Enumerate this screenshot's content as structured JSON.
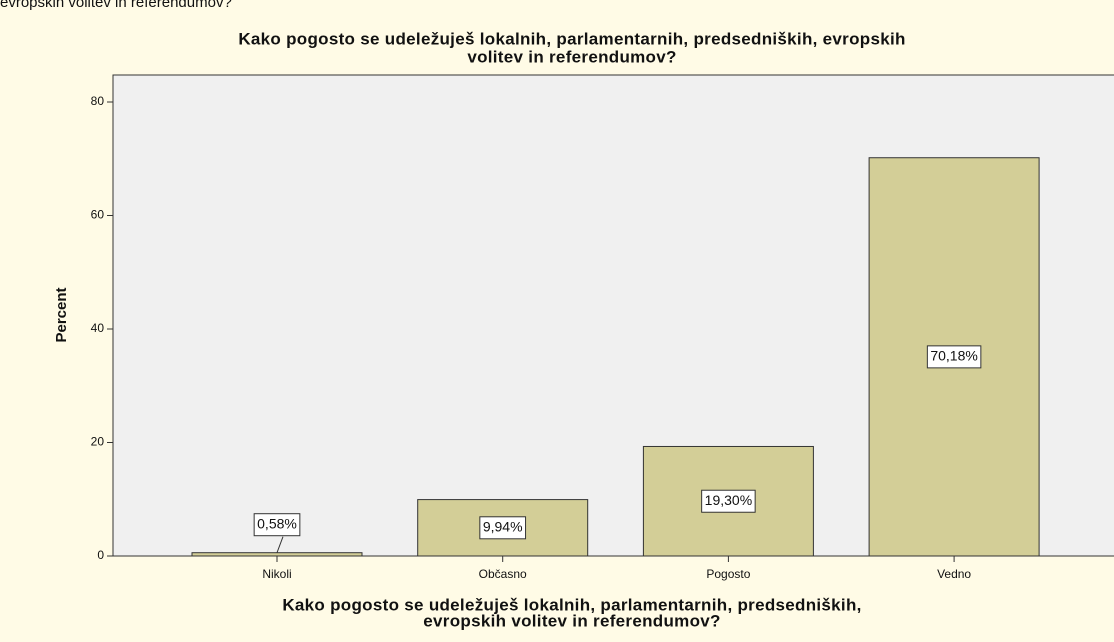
{
  "caption": "evropskih volitev in referendumov?",
  "chart_data": {
    "type": "bar",
    "title": [
      "Kako pogosto se udeležuješ lokalnih, parlamentarnih, predsedniških, evropskih",
      "volitev in referendumov?"
    ],
    "x_label": [
      "Kako pogosto se udeležuješ lokalnih, parlamentarnih, predsedniških,",
      "evropskih volitev in referendumov?"
    ],
    "y_label": "Percent",
    "categories": [
      "Nikoli",
      "Občasno",
      "Pogosto",
      "Vedno"
    ],
    "values": [
      0.58,
      9.94,
      19.3,
      70.18
    ],
    "value_labels": [
      "0,58%",
      "9,94%",
      "19,30%",
      "70,18%"
    ],
    "color": "#d3ce97",
    "ylim": [
      0,
      80
    ],
    "yticks": [
      0,
      20,
      40,
      60,
      80
    ]
  }
}
